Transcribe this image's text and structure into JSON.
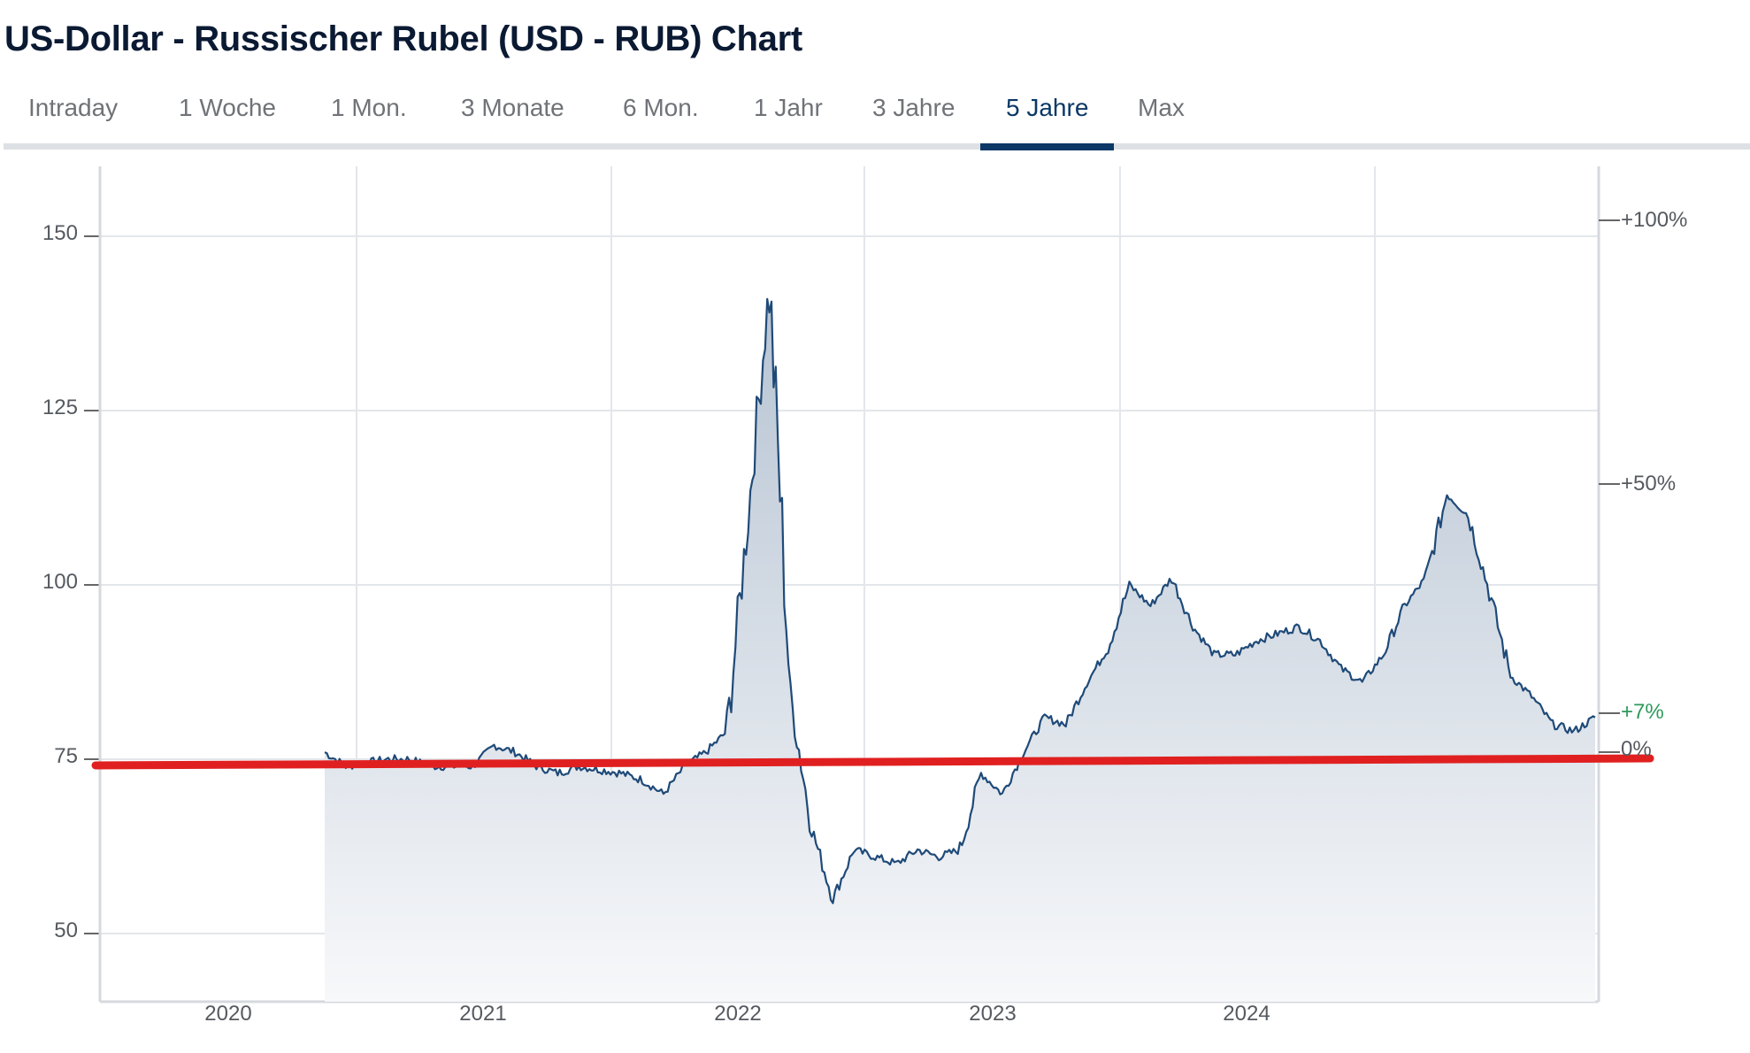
{
  "page": {
    "title": "US-Dollar - Russischer Rubel (USD - RUB) Chart"
  },
  "tabs": [
    {
      "label": "Intraday",
      "active": false
    },
    {
      "label": "1 Woche",
      "active": false
    },
    {
      "label": "1 Mon.",
      "active": false
    },
    {
      "label": "3 Monate",
      "active": false
    },
    {
      "label": "6 Mon.",
      "active": false
    },
    {
      "label": "1 Jahr",
      "active": false
    },
    {
      "label": "3 Jahre",
      "active": false
    },
    {
      "label": "5 Jahre",
      "active": true
    },
    {
      "label": "Max",
      "active": false
    }
  ],
  "colors": {
    "line": "#1f4a78",
    "area_top": "#b7c4d3",
    "area_bottom": "#f7f8fa",
    "grid": "#e3e6ea",
    "axis": "#d5d9de",
    "active_tab": "#0b3866",
    "positive": "#2e9a5c",
    "annotation_line": "#e02020"
  },
  "chart_data": {
    "type": "area",
    "title": "US-Dollar - Russischer Rubel (USD - RUB) Chart",
    "range_selected": "5 Jahre",
    "xlabel": "",
    "ylabel": "",
    "x_tick_labels": [
      "2020",
      "2021",
      "2022",
      "2023",
      "2024"
    ],
    "y_tick_labels": [
      "50",
      "75",
      "100",
      "125",
      "150"
    ],
    "y_ticks": [
      50,
      75,
      100,
      125,
      150
    ],
    "ylim": [
      40,
      160
    ],
    "right_axis_labels": [
      "+100%",
      "+50%",
      "+7%",
      "0%"
    ],
    "right_axis_reference": 75.5,
    "grid": true,
    "legend": null,
    "series": [
      {
        "name": "USD/RUB",
        "x": [
          "2020-07",
          "2020-08",
          "2020-09",
          "2020-10",
          "2020-11",
          "2020-12",
          "2021-01",
          "2021-02",
          "2021-03",
          "2021-04",
          "2021-05",
          "2021-06",
          "2021-07",
          "2021-08",
          "2021-09",
          "2021-10",
          "2021-11",
          "2021-12",
          "2022-01",
          "2022-02",
          "2022-03-07",
          "2022-03-15",
          "2022-04",
          "2022-05",
          "2022-06",
          "2022-07",
          "2022-08",
          "2022-09",
          "2022-10",
          "2022-11",
          "2022-12",
          "2023-01",
          "2023-02",
          "2023-03",
          "2023-04",
          "2023-05",
          "2023-06",
          "2023-07",
          "2023-08",
          "2023-09",
          "2023-10",
          "2023-11",
          "2023-12",
          "2024-01",
          "2024-02",
          "2024-03",
          "2024-04",
          "2024-05",
          "2024-06",
          "2024-07",
          "2024-08",
          "2024-09",
          "2024-10",
          "2024-11",
          "2024-12",
          "2025-01",
          "2025-02",
          "2025-03",
          "2025-04",
          "2025-05",
          "2025-06"
        ],
        "values": [
          76,
          74,
          74.5,
          75,
          75,
          74,
          74,
          74,
          77,
          76,
          74,
          73,
          74,
          73.5,
          73,
          72,
          70,
          74,
          76,
          79,
          110,
          143,
          84,
          65,
          55,
          62,
          61,
          60,
          62,
          61,
          62,
          73,
          70,
          76,
          81,
          80,
          86,
          91,
          100,
          97,
          101,
          94,
          90,
          90,
          92,
          93,
          94,
          92,
          88,
          86,
          90,
          97,
          101,
          113,
          110,
          99,
          87,
          84,
          80,
          79,
          81
        ]
      }
    ],
    "annotations": [
      {
        "type": "horizontal-line",
        "color": "#e02020",
        "y_start": 74.5,
        "y_end": 75.5,
        "note": "red hand-drawn reference line near 75"
      }
    ]
  }
}
